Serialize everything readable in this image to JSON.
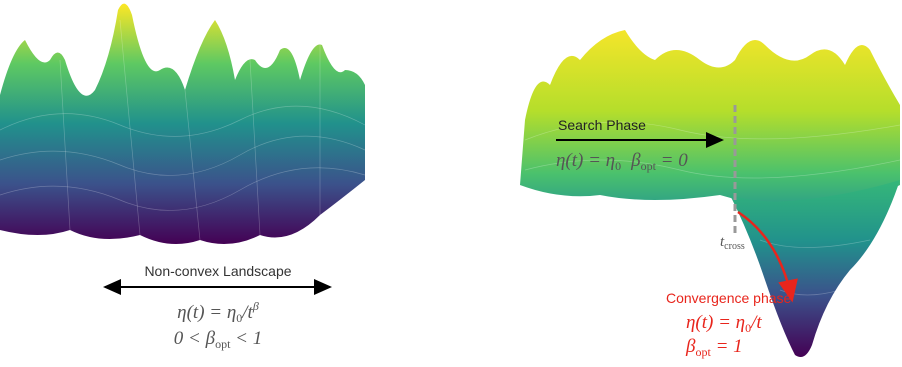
{
  "left_panel": {
    "label": "Non-convex Landscape",
    "formula": [
      "η(t) = η",
      "0",
      "/t",
      "β"
    ],
    "range": [
      "0 < β",
      "opt",
      " < 1"
    ]
  },
  "right_panel": {
    "search_label": "Search Phase",
    "search_formula": [
      "η(t) = η",
      "0",
      "β",
      "opt",
      " = 0"
    ],
    "t_cross": [
      "t",
      "cross"
    ],
    "convergence_label": "Convergence phase",
    "convergence_formula": [
      "η(t) = η",
      "0",
      "/t"
    ],
    "convergence_beta": [
      "β",
      "opt",
      " = 1"
    ]
  }
}
